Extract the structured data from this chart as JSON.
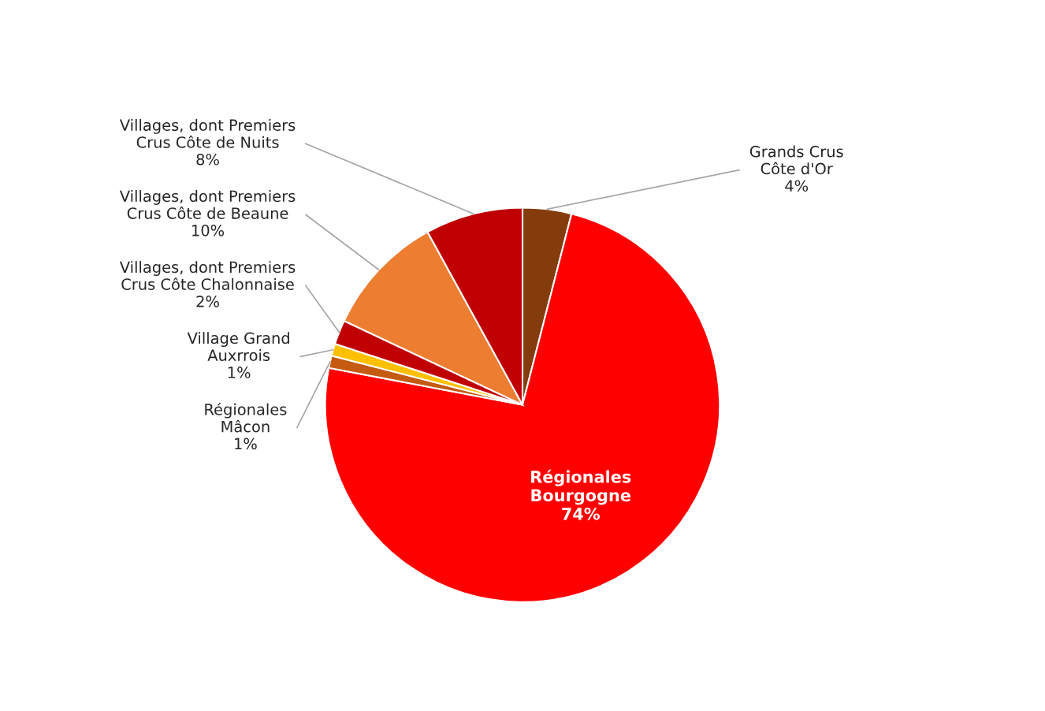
{
  "chart_data": {
    "type": "pie",
    "categories": [
      "Grands Crus Côte d'Or",
      "Régionales Bourgogne",
      "Régionales Mâcon",
      "Village Grand Auxrrois",
      "Villages, dont Premiers Crus Côte Chalonnaise",
      "Villages, dont Premiers Crus Côte de Beaune",
      "Villages, dont Premiers Crus Côte de Nuits"
    ],
    "values": [
      4,
      74,
      1,
      1,
      2,
      10,
      8
    ],
    "colors": [
      "#843c0c",
      "#ff0000",
      "#c55a11",
      "#ffc000",
      "#c00000",
      "#ed7d31",
      "#c00000"
    ],
    "value_labels": [
      "4%",
      "74%",
      "1%",
      "1%",
      "2%",
      "10%",
      "8%"
    ]
  }
}
